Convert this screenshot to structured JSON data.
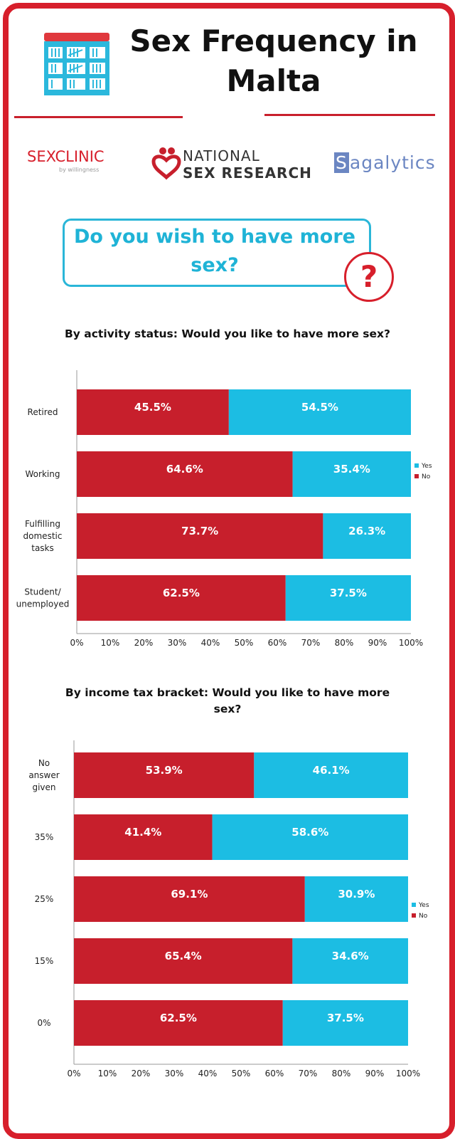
{
  "header": {
    "title": "Sex Frequency in Malta"
  },
  "logos": {
    "sexclinic_bold": "SEX",
    "sexclinic_thin": "CLINIC",
    "sexclinic_by": "by willingness",
    "nsr_line1": "NATIONAL",
    "nsr_line2": "SEX RESEARCH",
    "sagalytics_s": "S",
    "sagalytics_rest": "agalytics"
  },
  "question": {
    "text": "Do you wish to have more sex?",
    "mark": "?"
  },
  "colors": {
    "no": "#c71f2c",
    "yes": "#1cbde3",
    "frame": "#d71f2b",
    "accent": "#2ab6d8"
  },
  "icons": [
    "calendar-tally-icon",
    "heart-logo-icon",
    "question-mark-icon"
  ],
  "chart_data": [
    {
      "type": "bar",
      "orientation": "horizontal",
      "stacked": true,
      "title": "By activity status: Would you like to have more sex?",
      "categories": [
        "Retired",
        "Working",
        "Fulfilling domestic tasks",
        "Student/ unemployed"
      ],
      "series": [
        {
          "name": "No",
          "values": [
            45.5,
            64.6,
            73.7,
            62.5
          ]
        },
        {
          "name": "Yes",
          "values": [
            54.5,
            35.4,
            26.3,
            37.5
          ]
        }
      ],
      "xticks": [
        "0%",
        "10%",
        "20%",
        "30%",
        "40%",
        "50%",
        "60%",
        "70%",
        "80%",
        "90%",
        "100%"
      ],
      "xlim": [
        0,
        100
      ],
      "legend": "right",
      "legend_entries": [
        "Yes",
        "No"
      ]
    },
    {
      "type": "bar",
      "orientation": "horizontal",
      "stacked": true,
      "title": "By income tax bracket: Would you like to have more sex?",
      "categories": [
        "No answer given",
        "35%",
        "25%",
        "15%",
        "0%"
      ],
      "series": [
        {
          "name": "No",
          "values": [
            53.9,
            41.4,
            69.1,
            65.4,
            62.5
          ]
        },
        {
          "name": "Yes",
          "values": [
            46.1,
            58.6,
            30.9,
            34.6,
            37.5
          ]
        }
      ],
      "xticks": [
        "0%",
        "10%",
        "20%",
        "30%",
        "40%",
        "50%",
        "60%",
        "70%",
        "80%",
        "90%",
        "100%"
      ],
      "xlim": [
        0,
        100
      ],
      "legend": "right",
      "legend_entries": [
        "Yes",
        "No"
      ]
    }
  ]
}
